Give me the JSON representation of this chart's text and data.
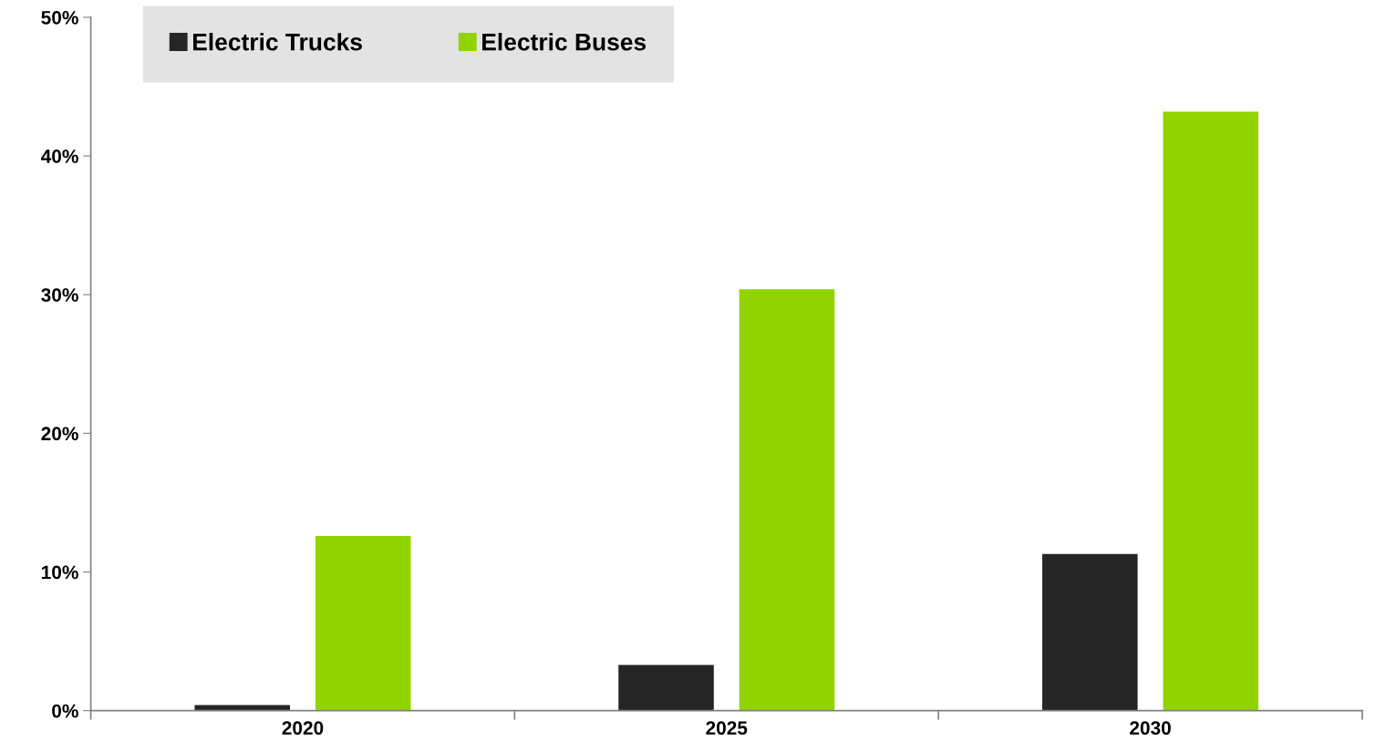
{
  "chart_data": {
    "type": "bar",
    "categories": [
      "2020",
      "2025",
      "2030"
    ],
    "series": [
      {
        "name": "Electric Trucks",
        "color": "#262626",
        "values": [
          0.4,
          3.3,
          11.3
        ]
      },
      {
        "name": "Electric Buses",
        "color": "#92d400",
        "values": [
          12.6,
          30.4,
          43.2
        ]
      }
    ],
    "ylim": [
      0,
      50
    ],
    "yticks": [
      {
        "value": 0,
        "label": "0%"
      },
      {
        "value": 10,
        "label": "10%"
      },
      {
        "value": 20,
        "label": "20%"
      },
      {
        "value": 30,
        "label": "30%"
      },
      {
        "value": 40,
        "label": "40%"
      },
      {
        "value": 50,
        "label": "50%"
      }
    ],
    "grid": false,
    "legend": "top left"
  }
}
